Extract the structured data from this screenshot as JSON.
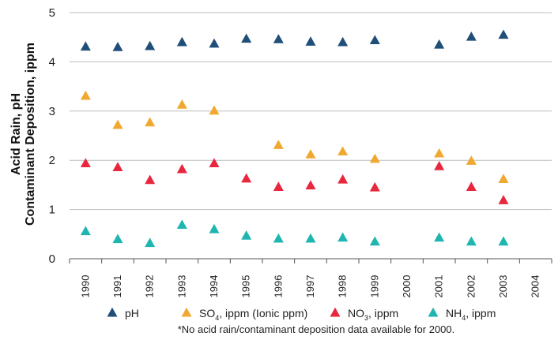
{
  "chart_data": {
    "type": "scatter",
    "ylabel_line1": "Acid Rain, pH",
    "ylabel_line2": "Contaminant Deposition, ippm",
    "xlabel": "",
    "title": "",
    "ylim": [
      0,
      5
    ],
    "yticks": [
      0,
      1,
      2,
      3,
      4,
      5
    ],
    "categories": [
      "1990",
      "1991",
      "1992",
      "1993",
      "1994",
      "1995",
      "1996",
      "1997",
      "1998",
      "1999",
      "2000",
      "2001",
      "2002",
      "2003",
      "2004"
    ],
    "grid": true,
    "legend_position": "bottom",
    "series": [
      {
        "name": "pH",
        "legend": {
          "main": "pH",
          "sub": "",
          "suffix": ""
        },
        "color": "#1f4e79",
        "values": [
          4.3,
          4.29,
          4.31,
          4.39,
          4.36,
          4.46,
          4.45,
          4.4,
          4.39,
          4.43,
          null,
          4.34,
          4.5,
          4.54,
          null
        ]
      },
      {
        "name": "SO4, ippm (Ionic ppm)",
        "legend": {
          "main": "SO",
          "sub": "4",
          "suffix": ", ippm (Ionic ppm)"
        },
        "color": "#f0a830",
        "values": [
          3.3,
          2.71,
          2.76,
          3.12,
          3.0,
          null,
          2.3,
          2.11,
          2.17,
          2.02,
          null,
          2.13,
          1.98,
          1.61,
          null
        ]
      },
      {
        "name": "NO3, ippm",
        "legend": {
          "main": "NO",
          "sub": "3",
          "suffix": ", ippm"
        },
        "color": "#e8263e",
        "values": [
          1.93,
          1.85,
          1.59,
          1.81,
          1.93,
          1.62,
          1.45,
          1.48,
          1.6,
          1.44,
          null,
          1.87,
          1.45,
          1.18,
          null
        ]
      },
      {
        "name": "NH4, ippm",
        "legend": {
          "main": "NH",
          "sub": "4",
          "suffix": ", ippm"
        },
        "color": "#1fb5b0",
        "values": [
          0.55,
          0.39,
          0.31,
          0.68,
          0.59,
          0.46,
          0.4,
          0.4,
          0.42,
          0.34,
          null,
          0.42,
          0.34,
          0.34,
          null
        ]
      }
    ],
    "note": "*No acid rain/contaminant deposition data available for 2000."
  }
}
